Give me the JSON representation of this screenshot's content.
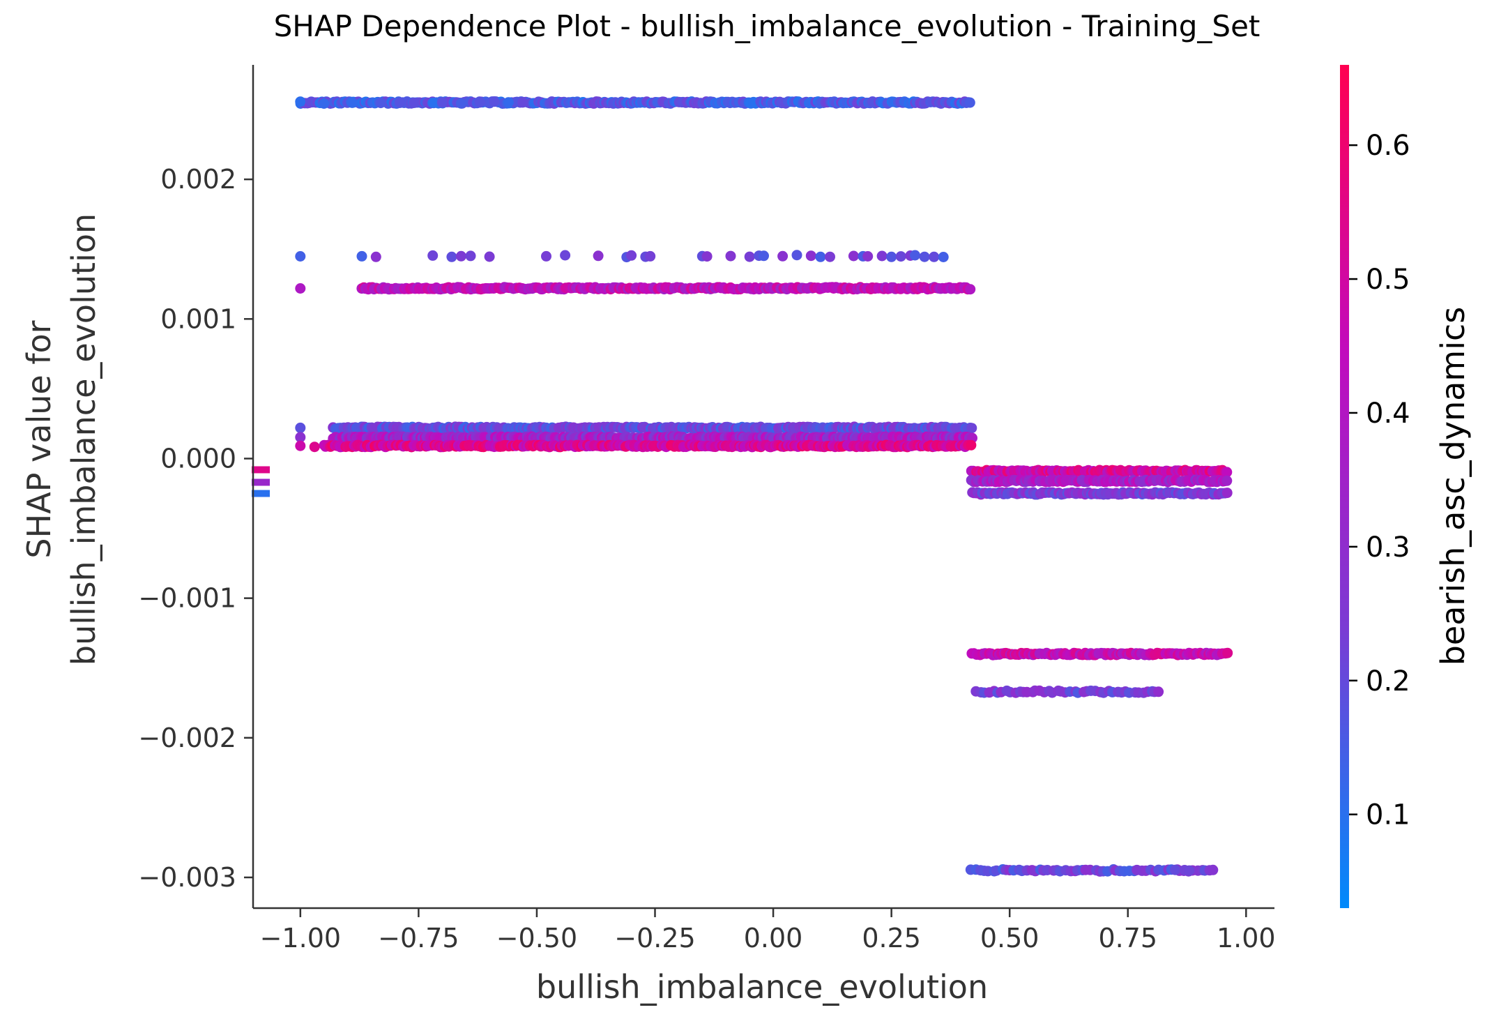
{
  "chart_data": {
    "type": "scatter",
    "title": "SHAP Dependence Plot - bullish_imbalance_evolution - Training_Set",
    "xlabel": "bullish_imbalance_evolution",
    "ylabel_line1": "SHAP value for",
    "ylabel_line2": "bullish_imbalance_evolution",
    "colorbar_label": "bearish_asc_dynamics",
    "xlim": [
      -1.1,
      1.06
    ],
    "ylim": [
      -0.00322,
      0.00282
    ],
    "xticks": [
      -1.0,
      -0.75,
      -0.5,
      -0.25,
      0.0,
      0.25,
      0.5,
      0.75,
      1.0
    ],
    "xtick_labels": [
      "−1.00",
      "−0.75",
      "−0.50",
      "−0.25",
      "0.00",
      "0.25",
      "0.50",
      "0.75",
      "1.00"
    ],
    "yticks": [
      0.002,
      0.001,
      0.0,
      -0.001,
      -0.002,
      -0.003
    ],
    "ytick_labels": [
      "0.002",
      "0.001",
      "0.000",
      "−0.001",
      "−0.002",
      "−0.003"
    ],
    "color_range": [
      0.03,
      0.66
    ],
    "colorbar_ticks": [
      0.1,
      0.2,
      0.3,
      0.4,
      0.5,
      0.6
    ],
    "colorbar_tick_labels": [
      "0.1",
      "0.2",
      "0.3",
      "0.4",
      "0.5",
      "0.6"
    ],
    "colormap": [
      "#008afb",
      "#7a3cd4",
      "#c10bbd",
      "#ff0051"
    ],
    "grid": false,
    "bands": [
      {
        "y": 0.00255,
        "x_range": [
          -1.0,
          0.42
        ],
        "color_mean": 0.16,
        "color_spread": 0.07,
        "density": "dense",
        "sparse_x": [
          -1.0,
          -0.95,
          -0.89,
          -0.83,
          -0.79,
          -0.76,
          -0.72,
          -0.7,
          -0.66,
          -0.62,
          -0.59,
          -0.56,
          -0.53
        ]
      },
      {
        "y": 0.00145,
        "x_range": [
          -1.0,
          0.37
        ],
        "color_mean": 0.22,
        "color_spread": 0.08,
        "density": "sparse",
        "sparse_x": [
          -1.0,
          -0.87,
          -0.84,
          -0.72,
          -0.68,
          -0.66,
          -0.64,
          -0.6,
          -0.48,
          -0.44,
          -0.37,
          -0.31,
          -0.3,
          -0.27,
          -0.26,
          -0.15,
          -0.14,
          -0.09,
          -0.05,
          -0.03,
          -0.02,
          0.02,
          0.05,
          0.08,
          0.1,
          0.12,
          0.17,
          0.19,
          0.2,
          0.23,
          0.25,
          0.27,
          0.29,
          0.3,
          0.32,
          0.34,
          0.36
        ]
      },
      {
        "y": 0.00122,
        "x_range": [
          -0.87,
          0.42
        ],
        "color_mean": 0.44,
        "color_spread": 0.09,
        "density": "dense",
        "sparse_x": [
          -1.0
        ]
      },
      {
        "y": 0.00022,
        "x_range": [
          -0.93,
          0.42
        ],
        "color_mean": 0.2,
        "color_spread": 0.08,
        "density": "dense",
        "sparse_x": [
          -1.0
        ]
      },
      {
        "y": 0.00015,
        "x_range": [
          -0.93,
          0.42
        ],
        "color_mean": 0.35,
        "color_spread": 0.12,
        "density": "dense",
        "sparse_x": [
          -1.0
        ]
      },
      {
        "y": 9e-05,
        "x_range": [
          -0.95,
          0.42
        ],
        "color_mean": 0.52,
        "color_spread": 0.1,
        "density": "dense",
        "sparse_x": [
          -1.0,
          -0.97
        ]
      },
      {
        "y": -9e-05,
        "x_range": [
          0.42,
          0.96
        ],
        "color_mean": 0.5,
        "color_spread": 0.1,
        "density": "dense",
        "sparse_x": []
      },
      {
        "y": -0.00016,
        "x_range": [
          0.42,
          0.96
        ],
        "color_mean": 0.38,
        "color_spread": 0.1,
        "density": "dense",
        "sparse_x": []
      },
      {
        "y": -0.00025,
        "x_range": [
          0.42,
          0.96
        ],
        "color_mean": 0.25,
        "color_spread": 0.08,
        "density": "dense",
        "sparse_x": []
      },
      {
        "y": -0.0014,
        "x_range": [
          0.42,
          0.96
        ],
        "color_mean": 0.46,
        "color_spread": 0.09,
        "density": "dense",
        "sparse_x": []
      },
      {
        "y": -0.00167,
        "x_range": [
          0.43,
          0.82
        ],
        "color_mean": 0.24,
        "color_spread": 0.08,
        "density": "medium",
        "sparse_x": []
      },
      {
        "y": -0.00295,
        "x_range": [
          0.42,
          0.93
        ],
        "color_mean": 0.22,
        "color_spread": 0.08,
        "density": "medium",
        "sparse_x": [
          0.85,
          0.87,
          0.88,
          0.93
        ]
      }
    ],
    "missing_markers": [
      {
        "y": -8e-05,
        "color": 0.55
      },
      {
        "y": -0.00017,
        "color": 0.33
      },
      {
        "y": -0.00025,
        "color": 0.1
      }
    ]
  }
}
